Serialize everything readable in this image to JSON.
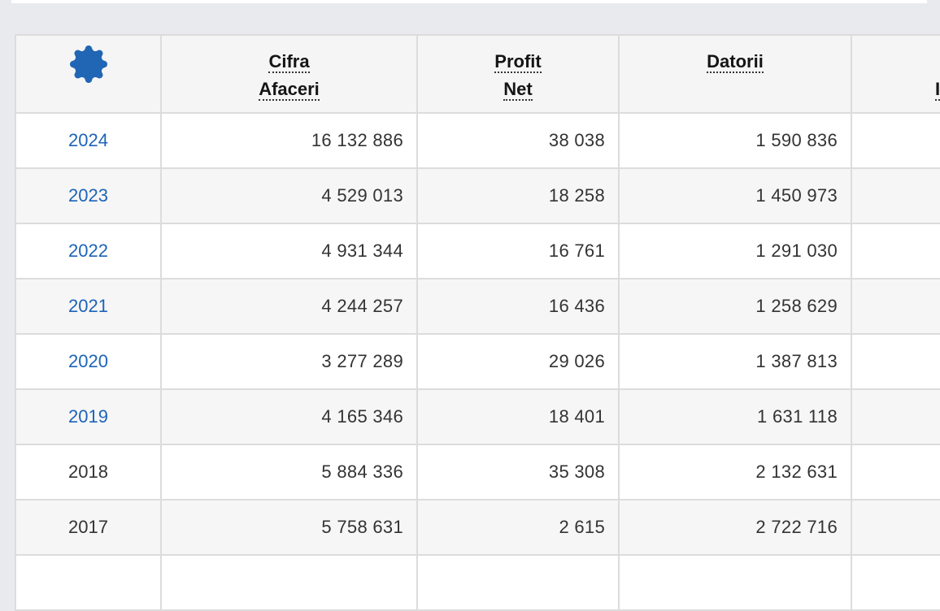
{
  "colors": {
    "page_background": "#e8eaed",
    "header_background": "#f5f5f5",
    "row_stripe": "#f6f6f6",
    "border": "#dcdcdc",
    "link_blue": "#1d63b8",
    "gear_blue": "#2166b5",
    "text": "#333333"
  },
  "table": {
    "settings_icon": "gear-icon",
    "columns": [
      {
        "id": "year",
        "label_lines": []
      },
      {
        "id": "cifra_afaceri",
        "label_lines": [
          "Cifra",
          "Afaceri"
        ]
      },
      {
        "id": "profit_net",
        "label_lines": [
          "Profit",
          "Net"
        ]
      },
      {
        "id": "datorii",
        "label_lines": [
          "Datorii"
        ]
      },
      {
        "id": "col5_cutoff",
        "label_lines": [
          "",
          "I"
        ]
      }
    ],
    "rows": [
      {
        "year": "2024",
        "is_link": true,
        "cifra_afaceri": "16 132 886",
        "profit_net": "38 038",
        "datorii": "1 590 836",
        "col5": ""
      },
      {
        "year": "2023",
        "is_link": true,
        "cifra_afaceri": "4 529 013",
        "profit_net": "18 258",
        "datorii": "1 450 973",
        "col5": ""
      },
      {
        "year": "2022",
        "is_link": true,
        "cifra_afaceri": "4 931 344",
        "profit_net": "16 761",
        "datorii": "1 291 030",
        "col5": ""
      },
      {
        "year": "2021",
        "is_link": true,
        "cifra_afaceri": "4 244 257",
        "profit_net": "16 436",
        "datorii": "1 258 629",
        "col5": ""
      },
      {
        "year": "2020",
        "is_link": true,
        "cifra_afaceri": "3 277 289",
        "profit_net": "29 026",
        "datorii": "1 387 813",
        "col5": ""
      },
      {
        "year": "2019",
        "is_link": true,
        "cifra_afaceri": "4 165 346",
        "profit_net": "18 401",
        "datorii": "1 631 118",
        "col5": ""
      },
      {
        "year": "2018",
        "is_link": false,
        "cifra_afaceri": "5 884 336",
        "profit_net": "35 308",
        "datorii": "2 132 631",
        "col5": ""
      },
      {
        "year": "2017",
        "is_link": false,
        "cifra_afaceri": "5 758 631",
        "profit_net": "2 615",
        "datorii": "2 722 716",
        "col5": ""
      }
    ]
  }
}
